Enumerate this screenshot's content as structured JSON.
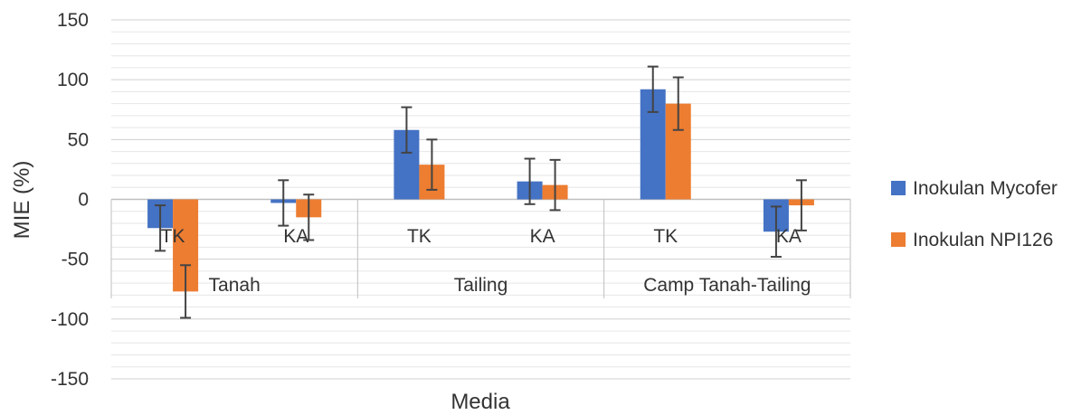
{
  "chart_data": {
    "type": "bar",
    "xlabel": "Media",
    "ylabel": "MIE (%)",
    "ylim": [
      -150,
      150
    ],
    "yticks": [
      150,
      100,
      50,
      0,
      -50,
      -100,
      -150
    ],
    "groups": [
      {
        "label": "Tanah",
        "categories": [
          "TK",
          "KA"
        ]
      },
      {
        "label": "Tailing",
        "categories": [
          "TK",
          "KA"
        ]
      },
      {
        "label": "Camp Tanah-Tailing",
        "categories": [
          "TK",
          "KA"
        ]
      }
    ],
    "categories": [
      "TK",
      "KA",
      "TK",
      "KA",
      "TK",
      "KA"
    ],
    "series": [
      {
        "name": "Inokulan Mycofer",
        "color": "#4472c4",
        "values": [
          -24,
          -3,
          58,
          15,
          92,
          -27
        ],
        "errors": [
          19,
          19,
          19,
          19,
          19,
          21
        ]
      },
      {
        "name": "Inokulan NPI126",
        "color": "#ed7d31",
        "values": [
          -77,
          -15,
          29,
          12,
          80,
          -5
        ],
        "errors": [
          22,
          19,
          21,
          21,
          22,
          21
        ]
      }
    ],
    "legend_position": "right",
    "grid": true
  }
}
